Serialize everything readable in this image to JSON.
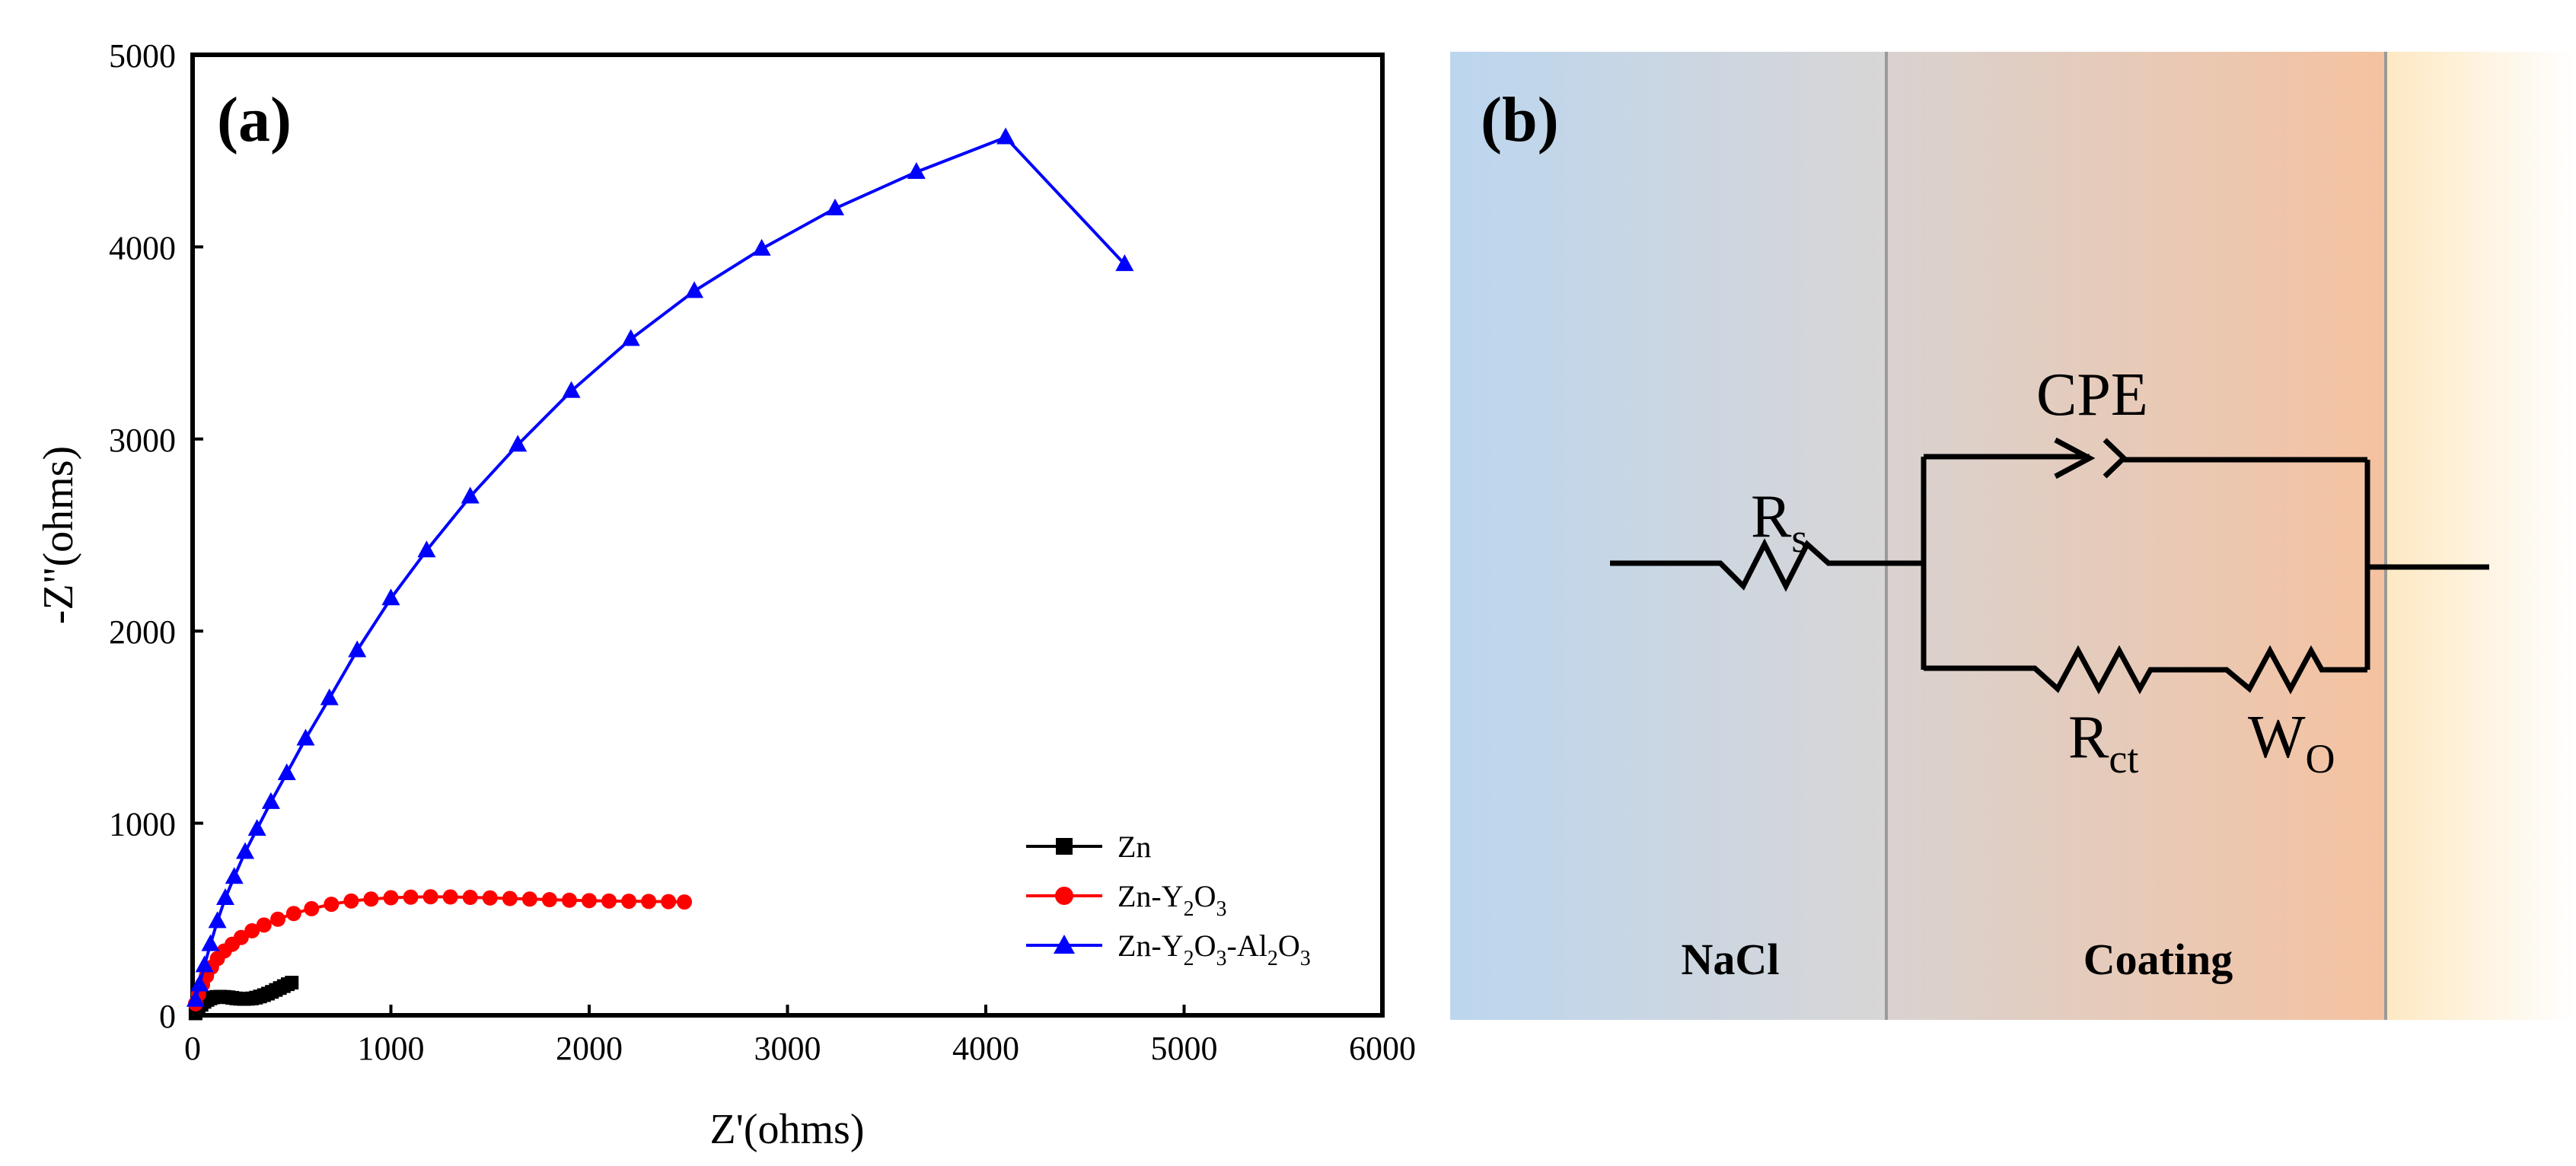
{
  "panel_a": {
    "label": "(a)"
  },
  "panel_b": {
    "label": "(b)",
    "components": {
      "rs_main": "R",
      "rs_sub": "s",
      "cpe": "CPE",
      "rct_main": "R",
      "rct_sub": "ct",
      "wo_main": "W",
      "wo_sub": "O"
    },
    "regions": {
      "left": "NaCl",
      "middle": "Coating"
    },
    "colors": {
      "left": "#bdd6ee",
      "middle_start": "#d9d3d1",
      "middle_end": "#f4c2a1",
      "right_start": "#fdebc6",
      "right_end": "#ffffff"
    }
  },
  "chart_data": {
    "type": "scatter",
    "xlabel": "Z'(ohms)",
    "ylabel": "-Z\"(ohms)",
    "xlim": [
      0,
      6000
    ],
    "ylim": [
      0,
      5000
    ],
    "xticks": [
      0,
      1000,
      2000,
      3000,
      4000,
      5000,
      6000
    ],
    "yticks": [
      0,
      1000,
      2000,
      3000,
      4000,
      5000
    ],
    "legend_position": "bottom-right",
    "series": [
      {
        "name": "Zn",
        "color": "#000000",
        "marker": "square",
        "x": [
          15,
          30,
          45,
          60,
          75,
          90,
          105,
          120,
          140,
          160,
          180,
          200,
          220,
          240,
          260,
          280,
          300,
          320,
          340,
          360,
          380,
          400,
          420,
          440,
          460,
          480,
          500
        ],
        "y": [
          10,
          35,
          55,
          70,
          80,
          88,
          93,
          96,
          97,
          96,
          94,
          91,
          88,
          86,
          85,
          86,
          88,
          92,
          98,
          105,
          113,
          122,
          132,
          142,
          152,
          162,
          170
        ]
      },
      {
        "name": "Zn-Y2O3",
        "color": "#ff0000",
        "marker": "circle",
        "x": [
          15,
          30,
          50,
          70,
          95,
          125,
          160,
          200,
          245,
          300,
          360,
          430,
          510,
          600,
          700,
          800,
          900,
          1000,
          1100,
          1200,
          1300,
          1400,
          1500,
          1600,
          1700,
          1800,
          1900,
          2000,
          2100,
          2200,
          2300,
          2400,
          2480
        ],
        "y": [
          60,
          110,
          160,
          205,
          250,
          295,
          335,
          370,
          405,
          440,
          470,
          500,
          530,
          555,
          578,
          595,
          605,
          612,
          615,
          617,
          616,
          614,
          611,
          608,
          605,
          602,
          599,
          597,
          595,
          594,
          593,
          592,
          590
        ]
      },
      {
        "name": "Zn-Y2O3-Al2O3",
        "color": "#0000ff",
        "marker": "triangle",
        "x": [
          15,
          35,
          60,
          90,
          125,
          165,
          210,
          265,
          325,
          395,
          475,
          570,
          690,
          830,
          1000,
          1180,
          1400,
          1640,
          1910,
          2210,
          2530,
          2870,
          3240,
          3650,
          4100,
          4700
        ],
        "y": [
          80,
          160,
          260,
          370,
          490,
          610,
          720,
          850,
          970,
          1110,
          1260,
          1440,
          1650,
          1900,
          2170,
          2420,
          2700,
          2970,
          3250,
          3520,
          3770,
          3990,
          4200,
          4390,
          4570,
          3910
        ]
      }
    ]
  }
}
